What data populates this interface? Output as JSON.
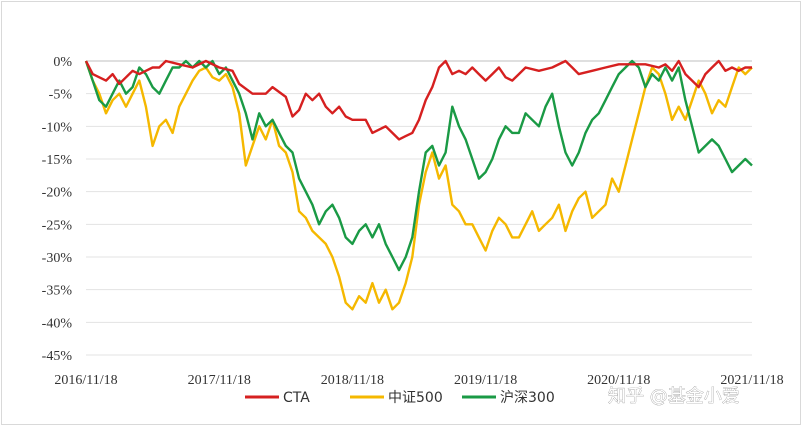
{
  "chart_data": {
    "type": "line",
    "title": "",
    "xlabel": "",
    "ylabel": "",
    "x_tick_labels": [
      "2016/11/18",
      "2017/11/18",
      "2018/11/18",
      "2019/11/18",
      "2020/11/18",
      "2021/11/18"
    ],
    "y_tick_labels": [
      "0%",
      "-5%",
      "-10%",
      "-15%",
      "-20%",
      "-25%",
      "-30%",
      "-35%",
      "-40%",
      "-45%"
    ],
    "ylim": [
      -45,
      0
    ],
    "xlim": [
      0,
      5
    ],
    "x_unit_note": "years since 2016/11/18",
    "grid": "horizontal",
    "legend_position": "bottom",
    "series": [
      {
        "name": "CTA",
        "color": "#d62020",
        "points": [
          [
            0,
            0
          ],
          [
            0.05,
            -2
          ],
          [
            0.1,
            -2.5
          ],
          [
            0.15,
            -3
          ],
          [
            0.2,
            -2
          ],
          [
            0.25,
            -3.5
          ],
          [
            0.3,
            -2.5
          ],
          [
            0.35,
            -1.5
          ],
          [
            0.4,
            -2
          ],
          [
            0.45,
            -1.5
          ],
          [
            0.5,
            -1
          ],
          [
            0.55,
            -1
          ],
          [
            0.6,
            0
          ],
          [
            0.7,
            -0.5
          ],
          [
            0.8,
            -1
          ],
          [
            0.9,
            0
          ],
          [
            1.0,
            -1
          ],
          [
            1.1,
            -1.5
          ],
          [
            1.15,
            -3.5
          ],
          [
            1.25,
            -5
          ],
          [
            1.35,
            -5
          ],
          [
            1.4,
            -4
          ],
          [
            1.5,
            -5.5
          ],
          [
            1.55,
            -8.5
          ],
          [
            1.6,
            -7.5
          ],
          [
            1.65,
            -5
          ],
          [
            1.7,
            -6
          ],
          [
            1.75,
            -5
          ],
          [
            1.8,
            -7
          ],
          [
            1.85,
            -8
          ],
          [
            1.9,
            -7
          ],
          [
            1.95,
            -8.5
          ],
          [
            2.0,
            -9
          ],
          [
            2.1,
            -9
          ],
          [
            2.15,
            -11
          ],
          [
            2.25,
            -10
          ],
          [
            2.3,
            -11
          ],
          [
            2.35,
            -12
          ],
          [
            2.4,
            -11.5
          ],
          [
            2.45,
            -11
          ],
          [
            2.5,
            -9
          ],
          [
            2.55,
            -6
          ],
          [
            2.6,
            -4
          ],
          [
            2.65,
            -1
          ],
          [
            2.7,
            0
          ],
          [
            2.75,
            -2
          ],
          [
            2.8,
            -1.5
          ],
          [
            2.85,
            -2
          ],
          [
            2.9,
            -1
          ],
          [
            2.95,
            -2
          ],
          [
            3.0,
            -3
          ],
          [
            3.05,
            -2
          ],
          [
            3.1,
            -1
          ],
          [
            3.15,
            -2.5
          ],
          [
            3.2,
            -3
          ],
          [
            3.25,
            -2
          ],
          [
            3.3,
            -1
          ],
          [
            3.4,
            -1.5
          ],
          [
            3.5,
            -1
          ],
          [
            3.6,
            0
          ],
          [
            3.65,
            -1
          ],
          [
            3.7,
            -2
          ],
          [
            3.8,
            -1.5
          ],
          [
            3.9,
            -1
          ],
          [
            4.0,
            -0.5
          ],
          [
            4.1,
            -0.5
          ],
          [
            4.2,
            -0.5
          ],
          [
            4.3,
            -1
          ],
          [
            4.35,
            -0.5
          ],
          [
            4.4,
            -1.5
          ],
          [
            4.45,
            0
          ],
          [
            4.5,
            -2
          ],
          [
            4.55,
            -3
          ],
          [
            4.6,
            -4
          ],
          [
            4.65,
            -2
          ],
          [
            4.7,
            -1
          ],
          [
            4.75,
            0
          ],
          [
            4.8,
            -1.5
          ],
          [
            4.85,
            -1
          ],
          [
            4.9,
            -1.5
          ],
          [
            4.95,
            -1
          ],
          [
            5.0,
            -1
          ]
        ]
      },
      {
        "name": "中证500",
        "color": "#f5b800",
        "points": [
          [
            0,
            0
          ],
          [
            0.05,
            -3
          ],
          [
            0.1,
            -5
          ],
          [
            0.15,
            -8
          ],
          [
            0.2,
            -6
          ],
          [
            0.25,
            -5
          ],
          [
            0.3,
            -7
          ],
          [
            0.35,
            -5
          ],
          [
            0.4,
            -3
          ],
          [
            0.45,
            -7
          ],
          [
            0.5,
            -13
          ],
          [
            0.55,
            -10
          ],
          [
            0.6,
            -9
          ],
          [
            0.65,
            -11
          ],
          [
            0.7,
            -7
          ],
          [
            0.75,
            -5
          ],
          [
            0.8,
            -3
          ],
          [
            0.85,
            -1.5
          ],
          [
            0.9,
            -1
          ],
          [
            0.95,
            -2.5
          ],
          [
            1.0,
            -3
          ],
          [
            1.05,
            -2
          ],
          [
            1.1,
            -4
          ],
          [
            1.15,
            -8
          ],
          [
            1.2,
            -16
          ],
          [
            1.25,
            -13
          ],
          [
            1.3,
            -10
          ],
          [
            1.35,
            -12
          ],
          [
            1.4,
            -9
          ],
          [
            1.45,
            -13
          ],
          [
            1.5,
            -14
          ],
          [
            1.55,
            -17
          ],
          [
            1.6,
            -23
          ],
          [
            1.65,
            -24
          ],
          [
            1.7,
            -26
          ],
          [
            1.75,
            -27
          ],
          [
            1.8,
            -28
          ],
          [
            1.85,
            -30
          ],
          [
            1.9,
            -33
          ],
          [
            1.95,
            -37
          ],
          [
            2.0,
            -38
          ],
          [
            2.05,
            -36
          ],
          [
            2.1,
            -37
          ],
          [
            2.15,
            -34
          ],
          [
            2.2,
            -37
          ],
          [
            2.25,
            -35
          ],
          [
            2.3,
            -38
          ],
          [
            2.35,
            -37
          ],
          [
            2.4,
            -34
          ],
          [
            2.45,
            -30
          ],
          [
            2.5,
            -22
          ],
          [
            2.55,
            -17
          ],
          [
            2.6,
            -14
          ],
          [
            2.65,
            -18
          ],
          [
            2.7,
            -16
          ],
          [
            2.75,
            -22
          ],
          [
            2.8,
            -23
          ],
          [
            2.85,
            -25
          ],
          [
            2.9,
            -25
          ],
          [
            2.95,
            -27
          ],
          [
            3.0,
            -29
          ],
          [
            3.05,
            -26
          ],
          [
            3.1,
            -24
          ],
          [
            3.15,
            -25
          ],
          [
            3.2,
            -27
          ],
          [
            3.25,
            -27
          ],
          [
            3.3,
            -25
          ],
          [
            3.35,
            -23
          ],
          [
            3.4,
            -26
          ],
          [
            3.45,
            -25
          ],
          [
            3.5,
            -24
          ],
          [
            3.55,
            -22
          ],
          [
            3.6,
            -26
          ],
          [
            3.65,
            -23
          ],
          [
            3.7,
            -21
          ],
          [
            3.75,
            -20
          ],
          [
            3.8,
            -24
          ],
          [
            3.85,
            -23
          ],
          [
            3.9,
            -22
          ],
          [
            3.95,
            -18
          ],
          [
            4.0,
            -20
          ],
          [
            4.05,
            -16
          ],
          [
            4.1,
            -12
          ],
          [
            4.15,
            -8
          ],
          [
            4.2,
            -4
          ],
          [
            4.25,
            -1
          ],
          [
            4.3,
            -2
          ],
          [
            4.35,
            -5
          ],
          [
            4.4,
            -9
          ],
          [
            4.45,
            -7
          ],
          [
            4.5,
            -9
          ],
          [
            4.55,
            -6
          ],
          [
            4.6,
            -3
          ],
          [
            4.65,
            -5
          ],
          [
            4.7,
            -8
          ],
          [
            4.75,
            -6
          ],
          [
            4.8,
            -7
          ],
          [
            4.85,
            -4
          ],
          [
            4.9,
            -1
          ],
          [
            4.95,
            -2
          ],
          [
            5.0,
            -1
          ]
        ]
      },
      {
        "name": "沪深300",
        "color": "#1a9a45",
        "points": [
          [
            0,
            0
          ],
          [
            0.05,
            -3
          ],
          [
            0.1,
            -6
          ],
          [
            0.15,
            -7
          ],
          [
            0.2,
            -5
          ],
          [
            0.25,
            -3
          ],
          [
            0.3,
            -5
          ],
          [
            0.35,
            -4
          ],
          [
            0.4,
            -1
          ],
          [
            0.45,
            -2
          ],
          [
            0.5,
            -4
          ],
          [
            0.55,
            -5
          ],
          [
            0.6,
            -3
          ],
          [
            0.65,
            -1
          ],
          [
            0.7,
            -1
          ],
          [
            0.75,
            0
          ],
          [
            0.8,
            -1
          ],
          [
            0.85,
            0
          ],
          [
            0.9,
            -1
          ],
          [
            0.95,
            0
          ],
          [
            1.0,
            -2
          ],
          [
            1.05,
            -1
          ],
          [
            1.1,
            -3
          ],
          [
            1.15,
            -5
          ],
          [
            1.2,
            -8
          ],
          [
            1.25,
            -12
          ],
          [
            1.3,
            -8
          ],
          [
            1.35,
            -10
          ],
          [
            1.4,
            -9
          ],
          [
            1.45,
            -11
          ],
          [
            1.5,
            -13
          ],
          [
            1.55,
            -14
          ],
          [
            1.6,
            -18
          ],
          [
            1.65,
            -20
          ],
          [
            1.7,
            -22
          ],
          [
            1.75,
            -25
          ],
          [
            1.8,
            -23
          ],
          [
            1.85,
            -22
          ],
          [
            1.9,
            -24
          ],
          [
            1.95,
            -27
          ],
          [
            2.0,
            -28
          ],
          [
            2.05,
            -26
          ],
          [
            2.1,
            -25
          ],
          [
            2.15,
            -27
          ],
          [
            2.2,
            -25
          ],
          [
            2.25,
            -28
          ],
          [
            2.3,
            -30
          ],
          [
            2.35,
            -32
          ],
          [
            2.4,
            -30
          ],
          [
            2.45,
            -27
          ],
          [
            2.5,
            -20
          ],
          [
            2.55,
            -14
          ],
          [
            2.6,
            -13
          ],
          [
            2.65,
            -16
          ],
          [
            2.7,
            -14
          ],
          [
            2.75,
            -7
          ],
          [
            2.8,
            -10
          ],
          [
            2.85,
            -12
          ],
          [
            2.9,
            -15
          ],
          [
            2.95,
            -18
          ],
          [
            3.0,
            -17
          ],
          [
            3.05,
            -15
          ],
          [
            3.1,
            -12
          ],
          [
            3.15,
            -10
          ],
          [
            3.2,
            -11
          ],
          [
            3.25,
            -11
          ],
          [
            3.3,
            -8
          ],
          [
            3.35,
            -9
          ],
          [
            3.4,
            -10
          ],
          [
            3.45,
            -7
          ],
          [
            3.5,
            -5
          ],
          [
            3.55,
            -10
          ],
          [
            3.6,
            -14
          ],
          [
            3.65,
            -16
          ],
          [
            3.7,
            -14
          ],
          [
            3.75,
            -11
          ],
          [
            3.8,
            -9
          ],
          [
            3.85,
            -8
          ],
          [
            3.9,
            -6
          ],
          [
            3.95,
            -4
          ],
          [
            4.0,
            -2
          ],
          [
            4.05,
            -1
          ],
          [
            4.1,
            0
          ],
          [
            4.15,
            -1
          ],
          [
            4.2,
            -4
          ],
          [
            4.25,
            -2
          ],
          [
            4.3,
            -3
          ],
          [
            4.35,
            -1
          ],
          [
            4.4,
            -3
          ],
          [
            4.45,
            -1
          ],
          [
            4.5,
            -6
          ],
          [
            4.55,
            -10
          ],
          [
            4.6,
            -14
          ],
          [
            4.65,
            -13
          ],
          [
            4.7,
            -12
          ],
          [
            4.75,
            -13
          ],
          [
            4.8,
            -15
          ],
          [
            4.85,
            -17
          ],
          [
            4.9,
            -16
          ],
          [
            4.95,
            -15
          ],
          [
            5.0,
            -16
          ]
        ]
      }
    ]
  },
  "watermark": {
    "text": "知乎 @基金小爱"
  }
}
